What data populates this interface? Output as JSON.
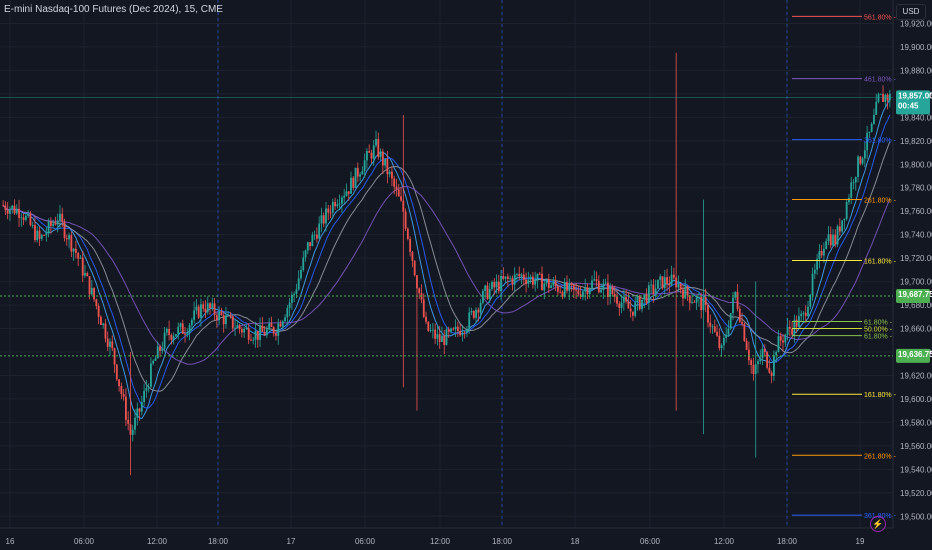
{
  "header": {
    "title": "E-mini Nasdaq-100 Futures (Dec 2024), 15, CME",
    "currency": "USD"
  },
  "price_axis": {
    "current_price": "19,857.00",
    "countdown": "00:45",
    "marker_a": "19,687.75",
    "marker_b": "19,636.75"
  },
  "colors": {
    "up": "#26a69a",
    "down": "#ef5350",
    "background": "#131722",
    "grid": "#1e222d",
    "ma_blue": "#2962ff",
    "ma_sky": "#42a5f5",
    "ma_purple": "#7e57c2",
    "ma_gray": "#9598a1",
    "level_green": "#4caf50"
  },
  "chart_data": {
    "type": "candlestick",
    "title": "E-mini Nasdaq-100 Futures (Dec 2024), 15, CME",
    "ylim": [
      19490,
      19940
    ],
    "y_ticks": [
      19500,
      19520,
      19540,
      19560,
      19580,
      19600,
      19620,
      19640,
      19660,
      19680,
      19700,
      19720,
      19740,
      19760,
      19780,
      19800,
      19820,
      19840,
      19860,
      19880,
      19900,
      19920
    ],
    "x_ticks": [
      "16",
      "06:00",
      "12:00",
      "18:00",
      "17",
      "06:00",
      "12:00",
      "18:00",
      "18",
      "06:00",
      "12:00",
      "18:00",
      "19"
    ],
    "session_breaks": [
      "18:00",
      "18:00",
      "18:00"
    ],
    "grid": true,
    "current_price": 19857.0,
    "horizontal_levels": [
      {
        "price": 19687.75,
        "label": "19,687.75",
        "style": "dotted"
      },
      {
        "price": 19636.75,
        "label": "19,636.75",
        "style": "dotted"
      }
    ],
    "fib_levels": [
      {
        "label": "561.80%",
        "price": 19926,
        "color": "#ef5350"
      },
      {
        "label": "461.80%",
        "price": 19873,
        "color": "#7e57c2"
      },
      {
        "label": "361.80%",
        "price": 19821,
        "color": "#2962ff"
      },
      {
        "label": "261.80%",
        "price": 19770,
        "color": "#ff9800"
      },
      {
        "label": "161.80%",
        "price": 19718,
        "color": "#ffeb3b"
      },
      {
        "label": "61.80%",
        "price": 19666,
        "color": "#8bc34a"
      },
      {
        "label": "50.00%",
        "price": 19660,
        "color": "#cddc39"
      },
      {
        "label": "61.80%",
        "price": 19654,
        "color": "#8bc34a"
      },
      {
        "label": "161.80%",
        "price": 19604,
        "color": "#ffeb3b"
      },
      {
        "label": "261.80%",
        "price": 19552,
        "color": "#ff9800"
      },
      {
        "label": "361.80%",
        "price": 19501,
        "color": "#2962ff"
      }
    ],
    "anchors": [
      [
        0,
        19765
      ],
      [
        8,
        19760
      ],
      [
        16,
        19735
      ],
      [
        24,
        19755
      ],
      [
        32,
        19725
      ],
      [
        40,
        19685
      ],
      [
        48,
        19640
      ],
      [
        56,
        19570
      ],
      [
        60,
        19590
      ],
      [
        66,
        19630
      ],
      [
        72,
        19655
      ],
      [
        80,
        19660
      ],
      [
        88,
        19680
      ],
      [
        96,
        19670
      ],
      [
        104,
        19660
      ],
      [
        112,
        19655
      ],
      [
        120,
        19660
      ],
      [
        128,
        19690
      ],
      [
        134,
        19730
      ],
      [
        140,
        19750
      ],
      [
        146,
        19770
      ],
      [
        152,
        19780
      ],
      [
        158,
        19800
      ],
      [
        164,
        19815
      ],
      [
        170,
        19790
      ],
      [
        176,
        19760
      ],
      [
        180,
        19720
      ],
      [
        186,
        19660
      ],
      [
        192,
        19650
      ],
      [
        198,
        19655
      ],
      [
        204,
        19665
      ],
      [
        212,
        19690
      ],
      [
        220,
        19700
      ],
      [
        228,
        19705
      ],
      [
        236,
        19700
      ],
      [
        244,
        19695
      ],
      [
        252,
        19690
      ],
      [
        260,
        19700
      ],
      [
        268,
        19690
      ],
      [
        276,
        19675
      ],
      [
        284,
        19690
      ],
      [
        290,
        19700
      ],
      [
        296,
        19700
      ],
      [
        300,
        19690
      ],
      [
        308,
        19680
      ],
      [
        316,
        19640
      ],
      [
        322,
        19690
      ],
      [
        330,
        19620
      ],
      [
        334,
        19640
      ],
      [
        338,
        19625
      ],
      [
        340,
        19645
      ],
      [
        346,
        19660
      ],
      [
        352,
        19670
      ],
      [
        356,
        19700
      ],
      [
        362,
        19740
      ],
      [
        366,
        19735
      ],
      [
        370,
        19760
      ],
      [
        374,
        19790
      ],
      [
        378,
        19810
      ],
      [
        382,
        19830
      ],
      [
        385,
        19855
      ],
      [
        388,
        19858
      ],
      [
        390,
        19857
      ]
    ],
    "spikes": [
      {
        "i": 176,
        "high": 19842,
        "low": 19610
      },
      {
        "i": 296,
        "high": 19895,
        "low": 19590
      },
      {
        "i": 308,
        "high": 19770,
        "low": 19570
      },
      {
        "i": 182,
        "high": 19700,
        "low": 19590
      },
      {
        "i": 56,
        "high": 19640,
        "low": 19535
      },
      {
        "i": 331,
        "high": 19700,
        "low": 19550
      }
    ],
    "moving_averages": [
      {
        "color": "#42a5f5",
        "period": 8
      },
      {
        "color": "#2962ff",
        "period": 13
      },
      {
        "color": "#9598a1",
        "period": 21
      },
      {
        "color": "#7e57c2",
        "period": 40
      }
    ]
  },
  "icons": {
    "lightning": "lightning-icon"
  }
}
